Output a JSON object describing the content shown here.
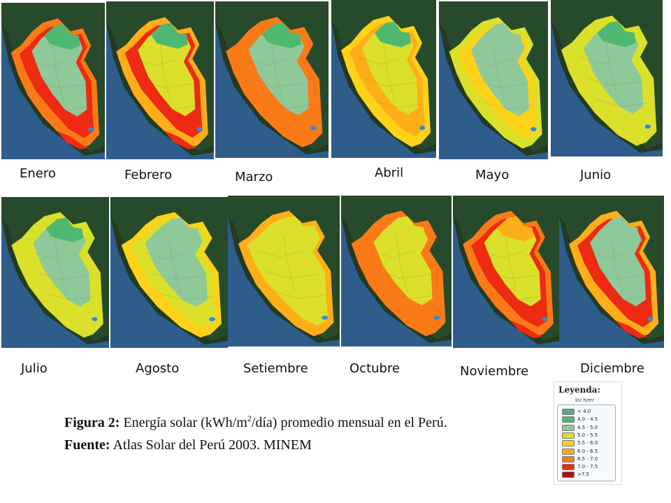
{
  "months": [
    {
      "name": "Enero",
      "label": "Enero"
    },
    {
      "name": "Febrero",
      "label": "Febrero"
    },
    {
      "name": "Marzo",
      "label": "Marzo"
    },
    {
      "name": "Abril",
      "label": "Abril"
    },
    {
      "name": "Mayo",
      "label": "Mayo"
    },
    {
      "name": "Junio",
      "label": "Junio"
    },
    {
      "name": "Julio",
      "label": "Julio"
    },
    {
      "name": "Agosto",
      "label": "Agosto"
    },
    {
      "name": "Setiembre",
      "label": "Setiembre"
    },
    {
      "name": "Octubre",
      "label": "Octubre"
    },
    {
      "name": "Noviembre",
      "label": "Noviembre"
    },
    {
      "name": "Diciembre",
      "label": "Diciembre"
    }
  ],
  "caption": {
    "line1_bold": "Figura 2:",
    "line1_text_a": " Energía solar (kWh/m",
    "line1_sup": "2",
    "line1_text_b": "/día) promedio mensual en el Perú.",
    "line2_bold": "Fuente:",
    "line2_text": " Atlas Solar del Perú 2003. MINEM"
  },
  "legend": {
    "title": "Leyenda:",
    "unit": "kU h/m²",
    "items": [
      {
        "label": "< 4.0",
        "color": "#5aa88a"
      },
      {
        "label": "4.0 - 4.5",
        "color": "#4fb870"
      },
      {
        "label": "4.5 - 5.0",
        "color": "#8fc99a"
      },
      {
        "label": "5.0 - 5.5",
        "color": "#dbe02a"
      },
      {
        "label": "5.5 - 6.0",
        "color": "#ffd21a"
      },
      {
        "label": "6.0 - 6.5",
        "color": "#ffae1a"
      },
      {
        "label": "6.5 - 7.0",
        "color": "#fb7a18"
      },
      {
        "label": "7.0 - 7.5",
        "color": "#ee2a12"
      },
      {
        "label": ">7.5",
        "color": "#b0100e"
      }
    ]
  },
  "colors": {
    "ocean": "#2e5d8c",
    "land_dark": "#264a2a",
    "river_blue": "#2d8ce0"
  }
}
